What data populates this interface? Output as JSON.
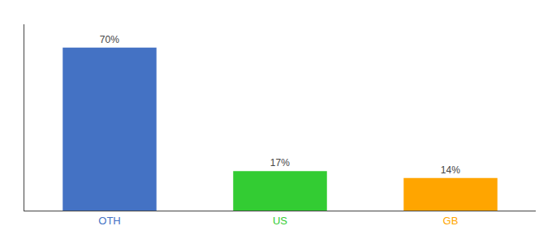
{
  "chart_data": {
    "type": "bar",
    "categories": [
      "OTH",
      "US",
      "GB"
    ],
    "values": [
      70,
      17,
      14
    ],
    "value_labels": [
      "70%",
      "17%",
      "14%"
    ],
    "colors": [
      "#4472C4",
      "#33CC33",
      "#FFA500"
    ],
    "ylim": [
      0,
      80
    ],
    "yticks": [],
    "data_labels": true,
    "tick_labels": "x",
    "grid": false
  }
}
